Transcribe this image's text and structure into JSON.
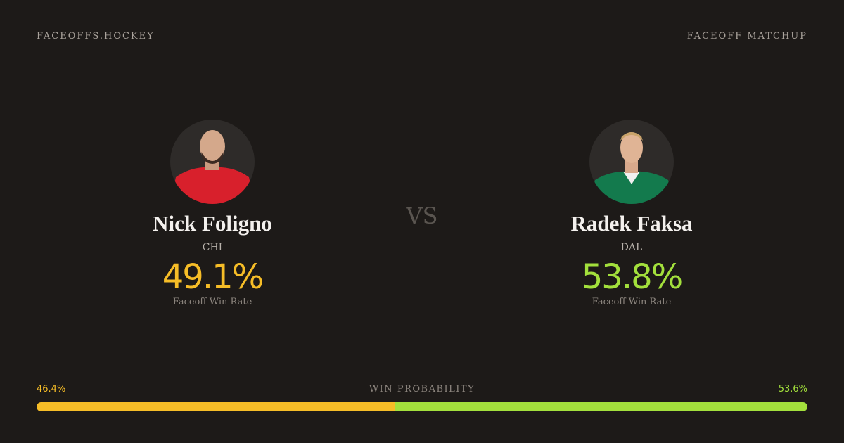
{
  "header": {
    "brand": "FACEOFFS.HOCKEY",
    "label": "FACEOFF MATCHUP"
  },
  "players": [
    {
      "name": "Nick Foligno",
      "team": "CHI",
      "rate": "49.1%",
      "rate_label": "Faceoff Win Rate",
      "color": "#f6bd27"
    },
    {
      "name": "Radek Faksa",
      "team": "DAL",
      "rate": "53.8%",
      "rate_label": "Faceoff Win Rate",
      "color": "#a3e03c"
    }
  ],
  "vs": "VS",
  "win_probability": {
    "label": "WIN PROBABILITY",
    "left": {
      "value": 46.4,
      "label": "46.4%"
    },
    "right": {
      "value": 53.6,
      "label": "53.6%"
    }
  }
}
